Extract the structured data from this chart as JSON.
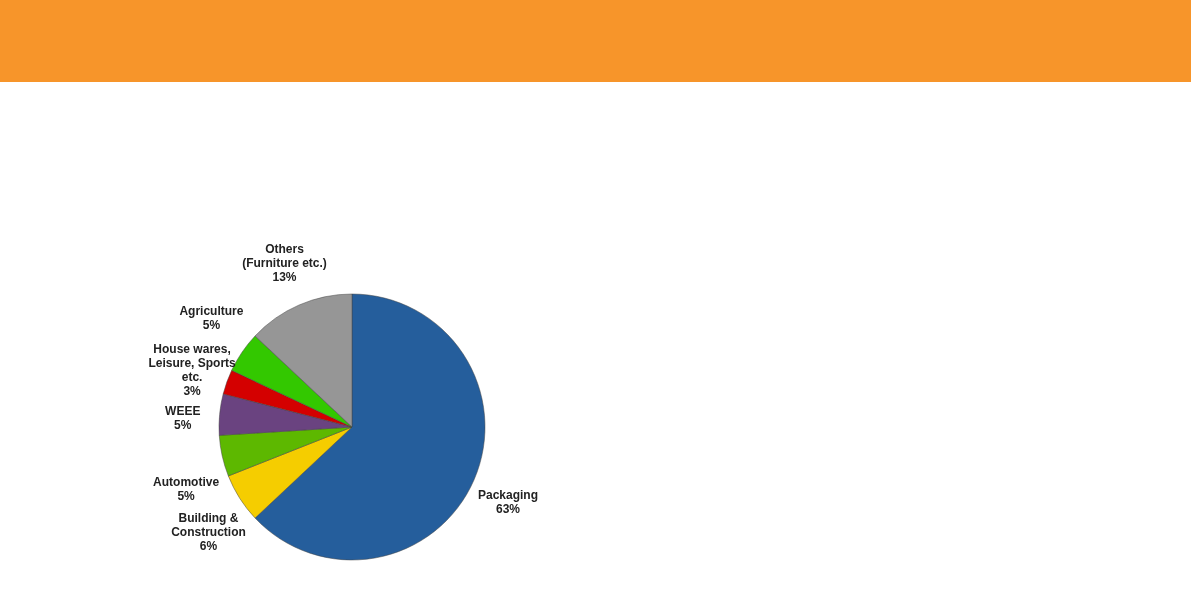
{
  "chart_data": {
    "type": "pie",
    "categories": [
      "Packaging",
      "Building &\nConstruction",
      "Automotive",
      "WEEE",
      "House wares,\nLeisure, Sports\netc.",
      "Agriculture",
      "Others\n(Furniture etc.)"
    ],
    "values": [
      63,
      6,
      5,
      5,
      3,
      5,
      13
    ],
    "value_labels": [
      "63%",
      "6%",
      "5%",
      "5%",
      "3%",
      "5%",
      "13%"
    ],
    "colors": [
      "#255e9c",
      "#f5cd00",
      "#5db800",
      "#6a4380",
      "#d40000",
      "#33c800",
      "#969696"
    ]
  }
}
